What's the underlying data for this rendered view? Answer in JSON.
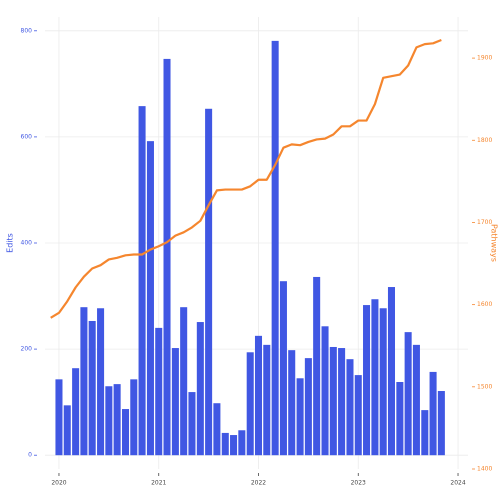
{
  "chart_data": {
    "type": "bar",
    "y_label": "Edits",
    "y2_label": "Pathways",
    "xlim": [
      2019.86,
      2024.1
    ],
    "xticks": [
      2020,
      2021,
      2022,
      2023,
      2024
    ],
    "ylim": [
      -26,
      826
    ],
    "yticks": [
      0,
      200,
      400,
      600,
      800
    ],
    "y2lim": [
      1400,
      1950
    ],
    "y2ticks": [
      1400,
      1500,
      1600,
      1700,
      1800,
      1900
    ],
    "grid": true,
    "series": [
      {
        "name": "Edits",
        "type": "bar",
        "color": "#4057e3",
        "x": [
          2020,
          2020.083,
          2020.167,
          2020.25,
          2020.333,
          2020.417,
          2020.5,
          2020.583,
          2020.667,
          2020.75,
          2020.833,
          2020.917,
          2021,
          2021.083,
          2021.167,
          2021.25,
          2021.333,
          2021.417,
          2021.5,
          2021.583,
          2021.667,
          2021.75,
          2021.833,
          2021.917,
          2022,
          2022.083,
          2022.167,
          2022.25,
          2022.333,
          2022.417,
          2022.5,
          2022.583,
          2022.667,
          2022.75,
          2022.833,
          2022.917,
          2023,
          2023.083,
          2023.167,
          2023.25,
          2023.333,
          2023.417,
          2023.5,
          2023.583,
          2023.667,
          2023.75,
          2023.833
        ],
        "values": [
          143,
          94,
          164,
          279,
          253,
          277,
          130,
          134,
          87,
          143,
          658,
          592,
          240,
          747,
          202,
          279,
          119,
          251,
          653,
          98,
          42,
          38,
          47,
          194,
          225,
          208,
          781,
          328,
          198,
          145,
          183,
          336,
          243,
          204,
          202,
          181,
          151,
          283,
          294,
          277,
          317,
          138,
          232,
          208,
          85,
          157,
          121
        ]
      },
      {
        "name": "Pathways",
        "type": "line",
        "axis": "y2",
        "color": "#f5862e",
        "x": [
          2019.917,
          2020,
          2020.083,
          2020.167,
          2020.25,
          2020.333,
          2020.417,
          2020.5,
          2020.583,
          2020.667,
          2020.75,
          2020.833,
          2020.917,
          2021,
          2021.083,
          2021.167,
          2021.25,
          2021.333,
          2021.417,
          2021.5,
          2021.583,
          2021.667,
          2021.75,
          2021.833,
          2021.917,
          2022,
          2022.083,
          2022.167,
          2022.25,
          2022.333,
          2022.417,
          2022.5,
          2022.583,
          2022.667,
          2022.75,
          2022.833,
          2022.917,
          2023,
          2023.083,
          2023.167,
          2023.25,
          2023.333,
          2023.417,
          2023.5,
          2023.583,
          2023.667,
          2023.75,
          2023.833
        ],
        "values": [
          1584,
          1590,
          1604,
          1621,
          1634,
          1644,
          1648,
          1655,
          1657,
          1660,
          1661,
          1661,
          1667,
          1671,
          1676,
          1684,
          1688,
          1694,
          1702,
          1721,
          1739,
          1740,
          1740,
          1740,
          1744,
          1752,
          1752,
          1770,
          1791,
          1795,
          1794,
          1798,
          1801,
          1802,
          1807,
          1817,
          1817,
          1824,
          1824,
          1844,
          1876,
          1878,
          1880,
          1891,
          1913,
          1917,
          1918,
          1922
        ]
      }
    ]
  }
}
